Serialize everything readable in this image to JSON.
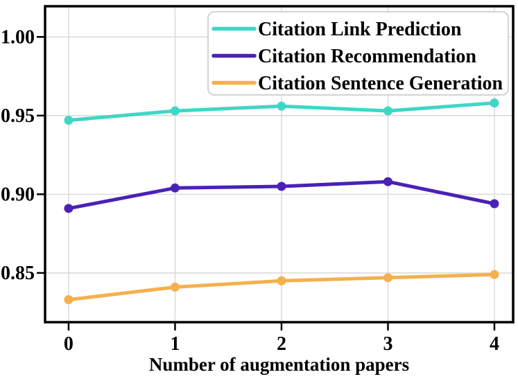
{
  "chart_data": {
    "type": "line",
    "x": [
      0,
      1,
      2,
      3,
      4
    ],
    "x_tick_labels": [
      "0",
      "1",
      "2",
      "3",
      "4"
    ],
    "y_ticks": [
      0.85,
      0.9,
      0.95,
      1.0
    ],
    "y_tick_labels": [
      "0.85",
      "0.90",
      "0.95",
      "1.00"
    ],
    "xlabel": "Number of augmentation papers",
    "ylabel": "",
    "title": "",
    "xlim": [
      -0.221,
      4.176
    ],
    "ylim": [
      0.8187,
      1.0195
    ],
    "grid": true,
    "legend_position": "upper right",
    "series": [
      {
        "name": "Citation Link Prediction",
        "color": "#40D6C6",
        "values": [
          0.947,
          0.953,
          0.956,
          0.953,
          0.958
        ]
      },
      {
        "name": "Citation Recommendation",
        "color": "#4A21B6",
        "values": [
          0.891,
          0.904,
          0.905,
          0.908,
          0.894
        ]
      },
      {
        "name": "Citation Sentence Generation",
        "color": "#F5B04D",
        "values": [
          0.833,
          0.841,
          0.845,
          0.847,
          0.849
        ]
      }
    ],
    "colors": {
      "background": "#FFFFFF",
      "grid": "#DCDCDC",
      "axis": "#000000",
      "legend_border": "#D3D3D3",
      "legend_background": "#FFFFFF",
      "text": "#000000"
    }
  }
}
